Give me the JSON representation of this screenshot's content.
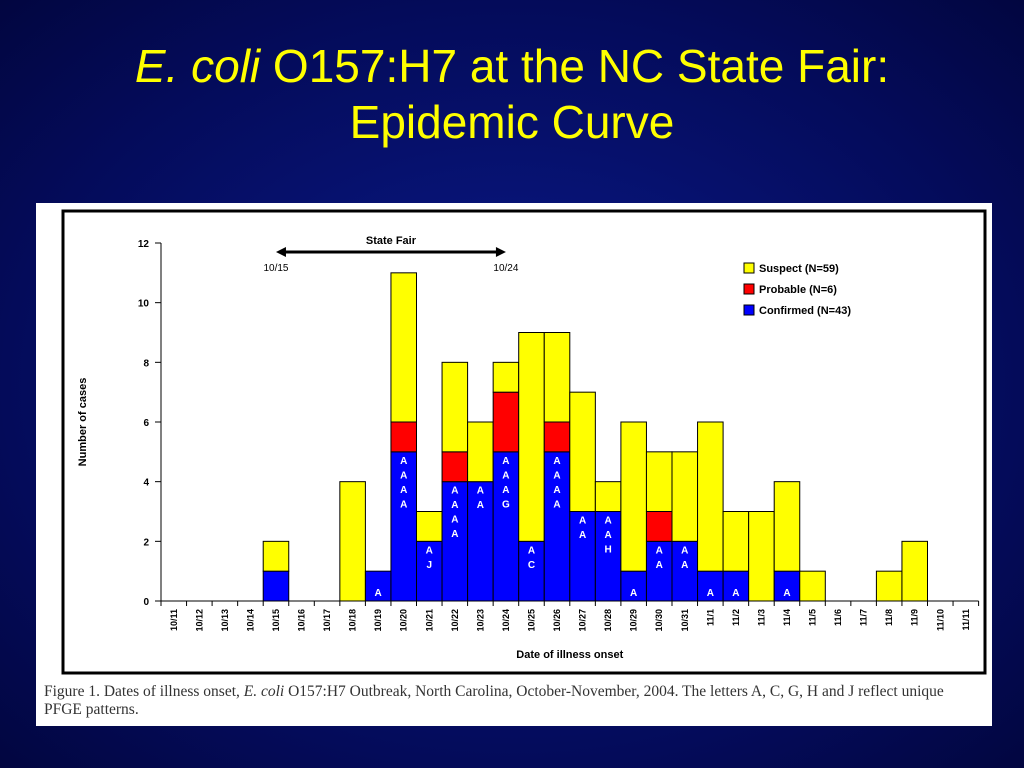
{
  "slide": {
    "title_italic": "E. coli",
    "title_rest": " O157:H7 at the NC State Fair:",
    "title_line2": "Epidemic Curve"
  },
  "caption": {
    "part1": "Figure 1. Dates of illness onset, ",
    "italic": "E. coli",
    "part2": " O157:H7 Outbreak, North Carolina, October-November, 2004.  The letters A, C, G, H and J reflect unique PFGE patterns."
  },
  "colors": {
    "suspect": "#ffff00",
    "probable": "#ff0000",
    "confirmed": "#0000ff",
    "background": "#040b5a",
    "title": "#ffff00"
  },
  "chart_data": {
    "type": "bar",
    "stacked": true,
    "xlabel": "Date of illness onset",
    "ylabel": "Number of cases",
    "ylim": [
      0,
      12
    ],
    "yticks": [
      "0",
      "2",
      "4",
      "6",
      "8",
      "10",
      "12"
    ],
    "legend_position": "top-right",
    "categories": [
      "10/11",
      "10/12",
      "10/13",
      "10/14",
      "10/15",
      "10/16",
      "10/17",
      "10/18",
      "10/19",
      "10/20",
      "10/21",
      "10/22",
      "10/23",
      "10/24",
      "10/25",
      "10/26",
      "10/27",
      "10/28",
      "10/29",
      "10/30",
      "10/31",
      "11/1",
      "11/2",
      "11/3",
      "11/4",
      "11/5",
      "11/6",
      "11/7",
      "11/8",
      "11/9",
      "11/10",
      "11/11"
    ],
    "series": [
      {
        "name": "Confirmed (N=43)",
        "key": "confirmed",
        "values": [
          0,
          0,
          0,
          0,
          1,
          0,
          0,
          0,
          1,
          5,
          2,
          4,
          4,
          5,
          2,
          5,
          3,
          3,
          1,
          2,
          2,
          1,
          1,
          0,
          1,
          0,
          0,
          0,
          0,
          0,
          0,
          0
        ]
      },
      {
        "name": "Probable (N=6)",
        "key": "probable",
        "values": [
          0,
          0,
          0,
          0,
          0,
          0,
          0,
          0,
          0,
          1,
          0,
          1,
          0,
          2,
          0,
          1,
          0,
          0,
          0,
          1,
          0,
          0,
          0,
          0,
          0,
          0,
          0,
          0,
          0,
          0,
          0,
          0
        ]
      },
      {
        "name": "Suspect (N=59)",
        "key": "suspect",
        "values": [
          0,
          0,
          0,
          0,
          1,
          0,
          0,
          4,
          0,
          5,
          1,
          3,
          2,
          1,
          7,
          3,
          4,
          1,
          5,
          2,
          3,
          5,
          2,
          3,
          3,
          1,
          0,
          0,
          1,
          2,
          0,
          0
        ]
      }
    ],
    "bar_labels": [
      [],
      [],
      [],
      [],
      [],
      [],
      [],
      [],
      [
        "A"
      ],
      [
        "A",
        "A",
        "A",
        "A"
      ],
      [
        "A",
        "J"
      ],
      [
        "A",
        "A",
        "A",
        "A"
      ],
      [
        "A",
        "A"
      ],
      [
        "A",
        "A",
        "A",
        "G"
      ],
      [
        "A",
        "C"
      ],
      [
        "A",
        "A",
        "A",
        "A"
      ],
      [
        "A",
        "A"
      ],
      [
        "A",
        "A",
        "H"
      ],
      [
        "A"
      ],
      [
        "A",
        "A"
      ],
      [
        "A",
        "A"
      ],
      [
        "A"
      ],
      [
        "A"
      ],
      [],
      [
        "A"
      ],
      [],
      [],
      [],
      [],
      [],
      [],
      []
    ],
    "annotation": {
      "label": "State Fair",
      "start_label": "10/15",
      "end_label": "10/24",
      "start_category": "10/15",
      "end_category": "10/24"
    }
  }
}
